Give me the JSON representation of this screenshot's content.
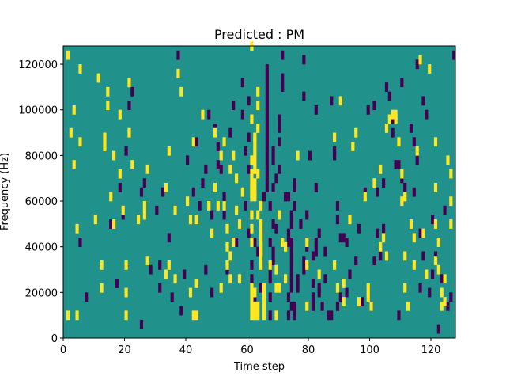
{
  "chart_data": {
    "type": "heatmap",
    "title": "Predicted : PM",
    "xlabel": "Time step",
    "ylabel": "Frequency (Hz)",
    "xlim": [
      0,
      128
    ],
    "ylim": [
      0,
      128000
    ],
    "x_ticks": [
      0,
      20,
      40,
      60,
      80,
      100,
      120
    ],
    "y_ticks": [
      0,
      20000,
      40000,
      60000,
      80000,
      100000,
      120000
    ],
    "grid": false,
    "legend": "none",
    "colormap": "viridis",
    "colors": {
      "background": "#21918c",
      "high": "#fde725",
      "low": "#440154"
    },
    "cell_height_hz": 4000,
    "high_cells": [
      [
        1,
        122000
      ],
      [
        1,
        8000
      ],
      [
        2,
        88000
      ],
      [
        3,
        74000
      ],
      [
        3,
        98000
      ],
      [
        4,
        46000
      ],
      [
        4,
        8000
      ],
      [
        5,
        116000
      ],
      [
        5,
        84000
      ],
      [
        10,
        50000
      ],
      [
        11,
        112000
      ],
      [
        12,
        30000
      ],
      [
        12,
        20000
      ],
      [
        13,
        86000
      ],
      [
        13,
        82000
      ],
      [
        14,
        100000
      ],
      [
        14,
        106000
      ],
      [
        15,
        60000
      ],
      [
        16,
        48000
      ],
      [
        16,
        78000
      ],
      [
        18,
        70000
      ],
      [
        18,
        96000
      ],
      [
        19,
        54000
      ],
      [
        20,
        30000
      ],
      [
        20,
        18000
      ],
      [
        20,
        8000
      ],
      [
        21,
        88000
      ],
      [
        21,
        110000
      ],
      [
        22,
        74000
      ],
      [
        24,
        50000
      ],
      [
        26,
        56000
      ],
      [
        26,
        52000
      ],
      [
        27,
        72000
      ],
      [
        27,
        32000
      ],
      [
        33,
        26000
      ],
      [
        33,
        64000
      ],
      [
        34,
        80000
      ],
      [
        34,
        30000
      ],
      [
        36,
        54000
      ],
      [
        36,
        24000
      ],
      [
        37,
        114000
      ],
      [
        38,
        106000
      ],
      [
        40,
        58000
      ],
      [
        41,
        18000
      ],
      [
        41,
        50000
      ],
      [
        42,
        84000
      ],
      [
        42,
        8000
      ],
      [
        43,
        8000
      ],
      [
        43,
        22000
      ],
      [
        43,
        50000
      ],
      [
        45,
        96000
      ],
      [
        47,
        56000
      ],
      [
        48,
        44000
      ],
      [
        49,
        88000
      ],
      [
        49,
        64000
      ],
      [
        50,
        56000
      ],
      [
        51,
        20000
      ],
      [
        51,
        78000
      ],
      [
        52,
        84000
      ],
      [
        52,
        56000
      ],
      [
        53,
        38000
      ],
      [
        53,
        30000
      ],
      [
        53,
        46000
      ],
      [
        54,
        24000
      ],
      [
        54,
        34000
      ],
      [
        54,
        72000
      ],
      [
        55,
        78000
      ],
      [
        55,
        40000
      ],
      [
        56,
        68000
      ],
      [
        56,
        54000
      ],
      [
        57,
        48000
      ],
      [
        57,
        24000
      ],
      [
        58,
        62000
      ],
      [
        61,
        8000
      ],
      [
        61,
        12000
      ],
      [
        61,
        16000
      ],
      [
        61,
        20000
      ],
      [
        61,
        52000
      ],
      [
        61,
        40000
      ],
      [
        61,
        46000
      ],
      [
        61,
        66000
      ],
      [
        61,
        64000
      ],
      [
        61,
        62000
      ],
      [
        61,
        60000
      ],
      [
        61,
        70000
      ],
      [
        61,
        76000
      ],
      [
        61,
        126000
      ],
      [
        61,
        94000
      ],
      [
        62,
        18000
      ],
      [
        62,
        8000
      ],
      [
        62,
        12000
      ],
      [
        62,
        60000
      ],
      [
        62,
        86000
      ],
      [
        62,
        72000
      ],
      [
        62,
        76000
      ],
      [
        62,
        80000
      ],
      [
        62,
        84000
      ],
      [
        62,
        66000
      ],
      [
        62,
        62000
      ],
      [
        63,
        12000
      ],
      [
        63,
        8000
      ],
      [
        63,
        52000
      ],
      [
        63,
        70000
      ],
      [
        63,
        90000
      ],
      [
        63,
        100000
      ],
      [
        63,
        106000
      ],
      [
        64,
        56000
      ],
      [
        64,
        30000
      ],
      [
        64,
        34000
      ],
      [
        64,
        36000
      ],
      [
        64,
        38000
      ],
      [
        64,
        40000
      ],
      [
        64,
        44000
      ],
      [
        64,
        48000
      ],
      [
        65,
        8000
      ],
      [
        65,
        12000
      ],
      [
        65,
        16000
      ],
      [
        65,
        20000
      ],
      [
        67,
        30000
      ],
      [
        69,
        20000
      ],
      [
        69,
        8000
      ],
      [
        69,
        28000
      ],
      [
        70,
        20000
      ],
      [
        70,
        52000
      ],
      [
        71,
        40000
      ],
      [
        72,
        38000
      ],
      [
        72,
        24000
      ],
      [
        76,
        78000
      ],
      [
        79,
        40000
      ],
      [
        79,
        30000
      ],
      [
        79,
        12000
      ],
      [
        83,
        26000
      ],
      [
        88,
        86000
      ],
      [
        88,
        30000
      ],
      [
        89,
        20000
      ],
      [
        90,
        102000
      ],
      [
        91,
        14000
      ],
      [
        91,
        22000
      ],
      [
        93,
        50000
      ],
      [
        94,
        82000
      ],
      [
        95,
        88000
      ],
      [
        96,
        14000
      ],
      [
        98,
        60000
      ],
      [
        99,
        20000
      ],
      [
        99,
        16000
      ],
      [
        100,
        12000
      ],
      [
        101,
        66000
      ],
      [
        103,
        72000
      ],
      [
        103,
        38000
      ],
      [
        104,
        42000
      ],
      [
        105,
        34000
      ],
      [
        105,
        90000
      ],
      [
        106,
        94000
      ],
      [
        107,
        96000
      ],
      [
        108,
        94000
      ],
      [
        108,
        96000
      ],
      [
        109,
        84000
      ],
      [
        110,
        58000
      ],
      [
        110,
        70000
      ],
      [
        111,
        60000
      ],
      [
        111,
        34000
      ],
      [
        111,
        20000
      ],
      [
        112,
        12000
      ],
      [
        113,
        48000
      ],
      [
        114,
        42000
      ],
      [
        114,
        30000
      ],
      [
        115,
        80000
      ],
      [
        116,
        120000
      ],
      [
        117,
        44000
      ],
      [
        118,
        26000
      ],
      [
        119,
        116000
      ],
      [
        121,
        32000
      ],
      [
        121,
        48000
      ],
      [
        121,
        64000
      ],
      [
        121,
        84000
      ],
      [
        122,
        40000
      ],
      [
        122,
        28000
      ],
      [
        123,
        12000
      ],
      [
        123,
        18000
      ],
      [
        124,
        14000
      ],
      [
        124,
        24000
      ],
      [
        125,
        76000
      ],
      [
        126,
        48000
      ],
      [
        126,
        70000
      ],
      [
        126,
        58000
      ]
    ],
    "low_cells": [
      [
        5,
        40000
      ],
      [
        7,
        16000
      ],
      [
        15,
        48000
      ],
      [
        17,
        22000
      ],
      [
        18,
        64000
      ],
      [
        19,
        52000
      ],
      [
        20,
        80000
      ],
      [
        21,
        100000
      ],
      [
        22,
        106000
      ],
      [
        25,
        4000
      ],
      [
        25,
        62000
      ],
      [
        26,
        66000
      ],
      [
        28,
        28000
      ],
      [
        30,
        54000
      ],
      [
        31,
        30000
      ],
      [
        31,
        20000
      ],
      [
        32,
        62000
      ],
      [
        34,
        42000
      ],
      [
        35,
        16000
      ],
      [
        36,
        54000
      ],
      [
        37,
        122000
      ],
      [
        38,
        10000
      ],
      [
        39,
        26000
      ],
      [
        40,
        76000
      ],
      [
        42,
        62000
      ],
      [
        43,
        84000
      ],
      [
        44,
        56000
      ],
      [
        45,
        66000
      ],
      [
        46,
        28000
      ],
      [
        46,
        72000
      ],
      [
        47,
        96000
      ],
      [
        48,
        52000
      ],
      [
        48,
        18000
      ],
      [
        49,
        90000
      ],
      [
        50,
        82000
      ],
      [
        50,
        74000
      ],
      [
        51,
        72000
      ],
      [
        52,
        60000
      ],
      [
        52,
        52000
      ],
      [
        53,
        28000
      ],
      [
        54,
        88000
      ],
      [
        55,
        100000
      ],
      [
        56,
        40000
      ],
      [
        57,
        48000
      ],
      [
        58,
        96000
      ],
      [
        58,
        110000
      ],
      [
        59,
        56000
      ],
      [
        59,
        80000
      ],
      [
        60,
        86000
      ],
      [
        60,
        102000
      ],
      [
        60,
        72000
      ],
      [
        60,
        44000
      ],
      [
        61,
        30000
      ],
      [
        61,
        24000
      ],
      [
        62,
        16000
      ],
      [
        62,
        40000
      ],
      [
        63,
        36000
      ],
      [
        64,
        20000
      ],
      [
        64,
        32000
      ],
      [
        64,
        46000
      ],
      [
        65,
        60000
      ],
      [
        66,
        64000
      ],
      [
        66,
        68000
      ],
      [
        66,
        72000
      ],
      [
        66,
        76000
      ],
      [
        66,
        80000
      ],
      [
        66,
        84000
      ],
      [
        66,
        88000
      ],
      [
        66,
        92000
      ],
      [
        66,
        96000
      ],
      [
        66,
        100000
      ],
      [
        66,
        104000
      ],
      [
        66,
        108000
      ],
      [
        66,
        112000
      ],
      [
        66,
        116000
      ],
      [
        67,
        24000
      ],
      [
        67,
        28000
      ],
      [
        67,
        56000
      ],
      [
        67,
        40000
      ],
      [
        67,
        16000
      ],
      [
        67,
        8000
      ],
      [
        68,
        36000
      ],
      [
        68,
        32000
      ],
      [
        68,
        48000
      ],
      [
        68,
        64000
      ],
      [
        68,
        76000
      ],
      [
        68,
        80000
      ],
      [
        69,
        46000
      ],
      [
        69,
        68000
      ],
      [
        70,
        72000
      ],
      [
        70,
        84000
      ],
      [
        70,
        90000
      ],
      [
        70,
        94000
      ],
      [
        71,
        108000
      ],
      [
        71,
        112000
      ],
      [
        71,
        122000
      ],
      [
        72,
        60000
      ],
      [
        73,
        60000
      ],
      [
        73,
        40000
      ],
      [
        73,
        44000
      ],
      [
        73,
        16000
      ],
      [
        73,
        8000
      ],
      [
        74,
        36000
      ],
      [
        74,
        32000
      ],
      [
        74,
        40000
      ],
      [
        74,
        12000
      ],
      [
        74,
        52000
      ],
      [
        74,
        28000
      ],
      [
        74,
        48000
      ],
      [
        74,
        20000
      ],
      [
        74,
        24000
      ],
      [
        75,
        64000
      ],
      [
        75,
        66000
      ],
      [
        75,
        56000
      ],
      [
        75,
        8000
      ],
      [
        75,
        12000
      ],
      [
        76,
        20000
      ],
      [
        76,
        24000
      ],
      [
        77,
        48000
      ],
      [
        78,
        28000
      ],
      [
        78,
        32000
      ],
      [
        78,
        104000
      ],
      [
        78,
        120000
      ],
      [
        79,
        38000
      ],
      [
        79,
        52000
      ],
      [
        80,
        78000
      ],
      [
        81,
        16000
      ],
      [
        81,
        22000
      ],
      [
        81,
        34000
      ],
      [
        81,
        12000
      ],
      [
        82,
        98000
      ],
      [
        82,
        64000
      ],
      [
        82,
        36000
      ],
      [
        82,
        40000
      ],
      [
        83,
        18000
      ],
      [
        83,
        20000
      ],
      [
        83,
        44000
      ],
      [
        84,
        12000
      ],
      [
        85,
        24000
      ],
      [
        85,
        36000
      ],
      [
        86,
        8000
      ],
      [
        87,
        8000
      ],
      [
        87,
        102000
      ],
      [
        88,
        80000
      ],
      [
        88,
        78000
      ],
      [
        89,
        12000
      ],
      [
        89,
        56000
      ],
      [
        89,
        50000
      ],
      [
        90,
        42000
      ],
      [
        90,
        16000
      ],
      [
        91,
        42000
      ],
      [
        92,
        40000
      ],
      [
        92,
        18000
      ],
      [
        93,
        26000
      ],
      [
        95,
        32000
      ],
      [
        96,
        46000
      ],
      [
        97,
        14000
      ],
      [
        98,
        62000
      ],
      [
        99,
        98000
      ],
      [
        100,
        12000
      ],
      [
        101,
        32000
      ],
      [
        101,
        100000
      ],
      [
        102,
        62000
      ],
      [
        102,
        44000
      ],
      [
        103,
        34000
      ],
      [
        104,
        66000
      ],
      [
        104,
        46000
      ],
      [
        105,
        108000
      ],
      [
        106,
        104000
      ],
      [
        107,
        88000
      ],
      [
        107,
        94000
      ],
      [
        108,
        74000
      ],
      [
        109,
        8000
      ],
      [
        109,
        74000
      ],
      [
        110,
        68000
      ],
      [
        110,
        110000
      ],
      [
        111,
        64000
      ],
      [
        113,
        90000
      ],
      [
        114,
        62000
      ],
      [
        114,
        84000
      ],
      [
        115,
        76000
      ],
      [
        115,
        118000
      ],
      [
        116,
        20000
      ],
      [
        116,
        44000
      ],
      [
        117,
        34000
      ],
      [
        117,
        102000
      ],
      [
        118,
        96000
      ],
      [
        119,
        18000
      ],
      [
        120,
        26000
      ],
      [
        120,
        50000
      ],
      [
        121,
        34000
      ],
      [
        122,
        2000
      ],
      [
        123,
        24000
      ],
      [
        124,
        54000
      ],
      [
        125,
        12000
      ],
      [
        126,
        16000
      ],
      [
        127,
        122000
      ]
    ]
  }
}
